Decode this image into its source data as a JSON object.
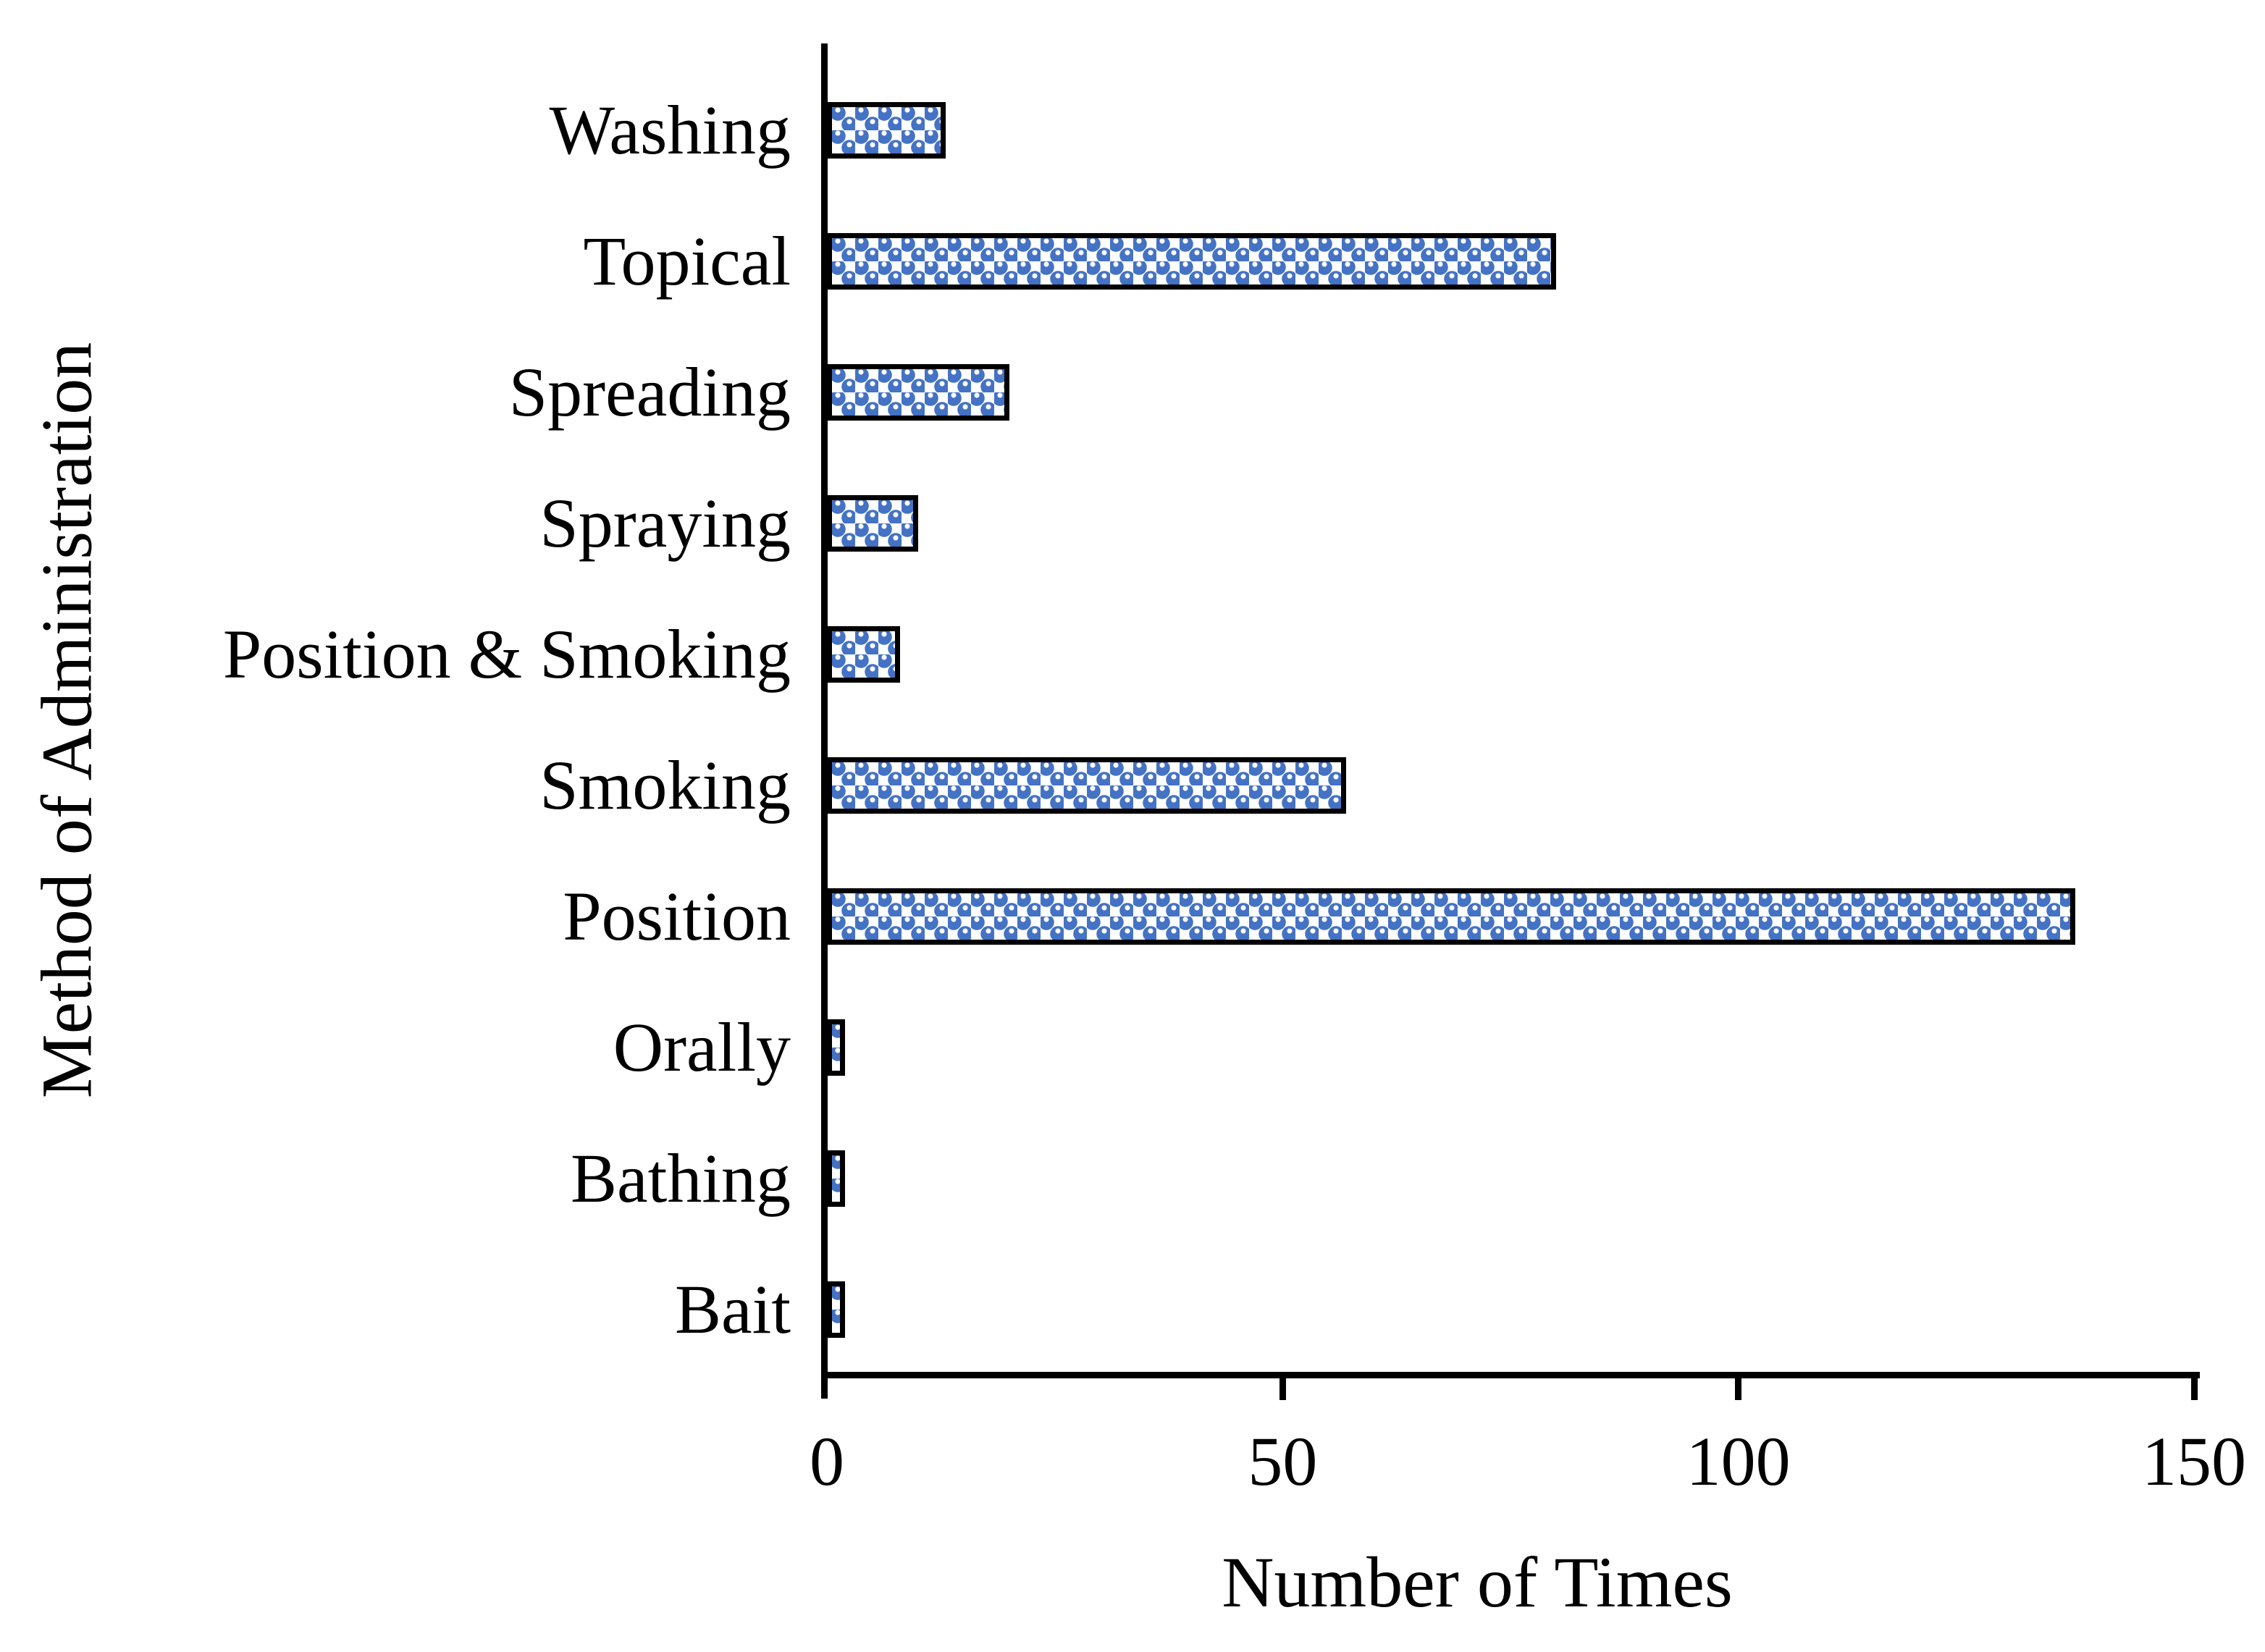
{
  "chart_data": {
    "type": "bar",
    "orientation": "horizontal",
    "title": "",
    "xlabel": "Number of Times",
    "ylabel": "Method of Administration",
    "categories": [
      "Washing",
      "Topical",
      "Spreading",
      "Spraying",
      "Position & Smoking",
      "Smoking",
      "Position",
      "Orally",
      "Bathing",
      "Bait"
    ],
    "values": [
      13,
      80,
      20,
      10,
      8,
      57,
      137,
      2,
      2,
      2
    ],
    "xlim": [
      0,
      150
    ],
    "xticks": [
      0,
      50,
      100,
      150
    ],
    "grid": false,
    "legend": "none",
    "bar_fill_color": "#4472C4",
    "bar_pattern": "checker-sphere",
    "bar_border_color": "#000000",
    "axis_color": "#000000"
  }
}
